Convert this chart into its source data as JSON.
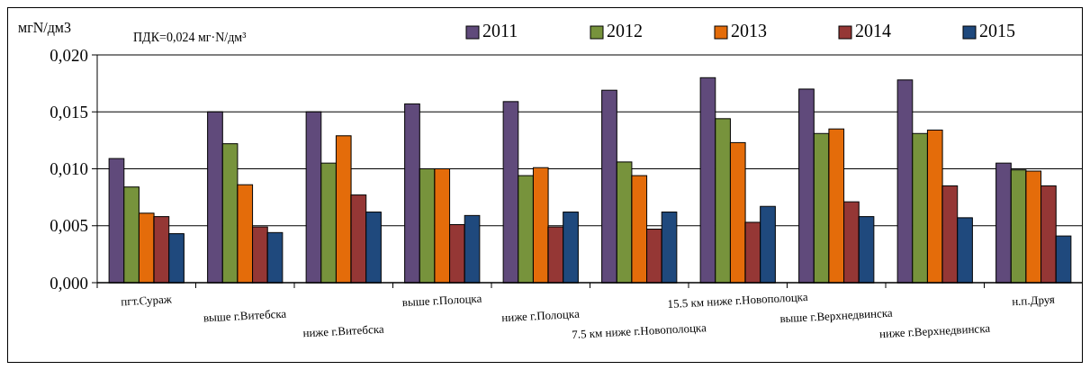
{
  "chart_data": {
    "type": "bar",
    "ylabel": "мгN/дм3",
    "annotations": [
      "ПДК=0,024 мг·N/дм³"
    ],
    "categories": [
      "пгт.Сураж",
      "выше г.Витебска",
      "ниже г.Витебска",
      "выше г.Полоцка",
      "ниже г.Полоцка",
      "7.5 км ниже г.Новополоцка",
      "15.5 км ниже г.Новополоцка",
      "выше г.Верхнедвинска",
      "ниже г.Верхнедвинска",
      "н.п.Друя"
    ],
    "series": [
      {
        "name": "2011",
        "color": "#604a7b",
        "values": [
          0.0109,
          0.015,
          0.015,
          0.0157,
          0.0159,
          0.0169,
          0.018,
          0.017,
          0.0178,
          0.0105
        ]
      },
      {
        "name": "2012",
        "color": "#77933c",
        "values": [
          0.0084,
          0.0122,
          0.0105,
          0.01,
          0.0094,
          0.0106,
          0.0144,
          0.0131,
          0.0131,
          0.0099
        ]
      },
      {
        "name": "2013",
        "color": "#e46c0a",
        "values": [
          0.0061,
          0.0086,
          0.0129,
          0.01,
          0.0101,
          0.0094,
          0.0123,
          0.0135,
          0.0134,
          0.0098
        ]
      },
      {
        "name": "2014",
        "color": "#953735",
        "values": [
          0.0058,
          0.0049,
          0.0077,
          0.0051,
          0.0049,
          0.0047,
          0.0053,
          0.0071,
          0.0085,
          0.0085
        ]
      },
      {
        "name": "2015",
        "color": "#1f497d",
        "values": [
          0.0043,
          0.0044,
          0.0062,
          0.0059,
          0.0062,
          0.0062,
          0.0067,
          0.0058,
          0.0057,
          0.0041
        ]
      }
    ],
    "ylim": [
      0,
      0.02
    ],
    "yticks": [
      {
        "value": 0,
        "label": "0,000"
      },
      {
        "value": 0.005,
        "label": "0,005"
      },
      {
        "value": 0.01,
        "label": "0,010"
      },
      {
        "value": 0.015,
        "label": "0,015"
      },
      {
        "value": 0.02,
        "label": "0,020"
      }
    ],
    "grid": "y",
    "legend": "top"
  }
}
